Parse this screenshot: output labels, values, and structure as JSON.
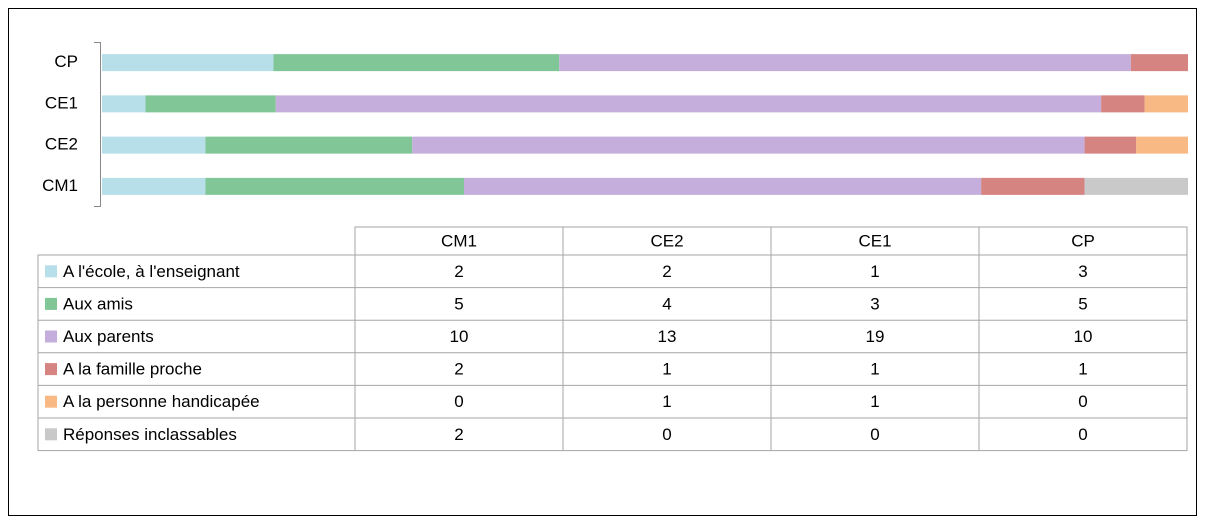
{
  "chart_data": {
    "type": "bar",
    "orientation": "horizontal",
    "stacked": "percent",
    "categories": [
      "CM1",
      "CE2",
      "CE1",
      "CP"
    ],
    "series": [
      {
        "name": "A l'école, à l'enseignant",
        "color": "#b7dfe9",
        "values": [
          2,
          2,
          1,
          3
        ]
      },
      {
        "name": "Aux amis",
        "color": "#80c697",
        "values": [
          5,
          4,
          3,
          5
        ]
      },
      {
        "name": "Aux parents",
        "color": "#c5aedb",
        "values": [
          10,
          13,
          19,
          10
        ]
      },
      {
        "name": "A la famille proche",
        "color": "#d58482",
        "values": [
          2,
          1,
          1,
          1
        ]
      },
      {
        "name": "A la personne handicapée",
        "color": "#f9b985",
        "values": [
          0,
          1,
          1,
          0
        ]
      },
      {
        "name": "Réponses inclassables",
        "color": "#c9c9c9",
        "values": [
          2,
          0,
          0,
          0
        ]
      }
    ],
    "data_table": true
  }
}
